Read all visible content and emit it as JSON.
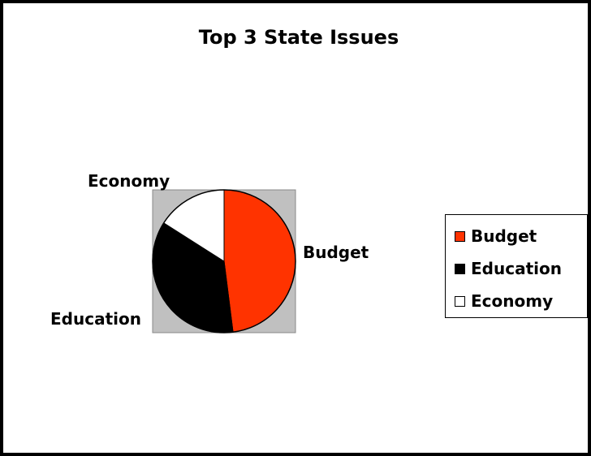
{
  "chart_data": {
    "type": "pie",
    "title": "Top 3 State Issues",
    "categories": [
      "Budget",
      "Education",
      "Economy"
    ],
    "values": [
      48,
      36,
      16
    ],
    "colors": [
      "#ff3300",
      "#000000",
      "#ffffff"
    ],
    "plot_background": "#c0c0c0",
    "legend": "right"
  }
}
